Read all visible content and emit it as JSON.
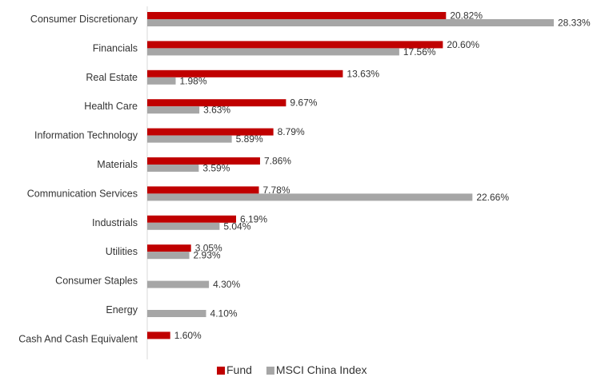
{
  "chart_data": {
    "type": "bar",
    "orientation": "horizontal",
    "categories": [
      "Consumer Discretionary",
      "Financials",
      "Real Estate",
      "Health Care",
      "Information Technology",
      "Materials",
      "Communication Services",
      "Industrials",
      "Utilities",
      "Consumer Staples",
      "Energy",
      "Cash And Cash Equivalent"
    ],
    "series": [
      {
        "name": "Fund",
        "color": "#c00000",
        "values": [
          20.82,
          20.6,
          13.63,
          9.67,
          8.79,
          7.86,
          7.78,
          6.19,
          3.05,
          null,
          null,
          1.6
        ],
        "labels": [
          "20.82%",
          "20.60%",
          "13.63%",
          "9.67%",
          "8.79%",
          "7.86%",
          "7.78%",
          "6.19%",
          "3.05%",
          null,
          null,
          "1.60%"
        ]
      },
      {
        "name": "MSCI China Index",
        "color": "#a6a6a6",
        "values": [
          28.33,
          17.56,
          1.98,
          3.63,
          5.89,
          3.59,
          22.66,
          5.04,
          2.93,
          4.3,
          4.1,
          null
        ],
        "labels": [
          "28.33%",
          "17.56%",
          "1.98%",
          "3.63%",
          "5.89%",
          "3.59%",
          "22.66%",
          "5.04%",
          "2.93%",
          "4.30%",
          "4.10%",
          null
        ]
      }
    ],
    "xlim": [
      0,
      28.33
    ],
    "grid": false,
    "legend": "bottom"
  }
}
